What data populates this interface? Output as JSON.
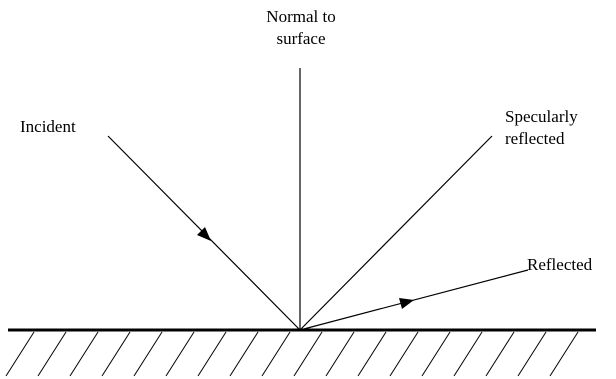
{
  "labels": {
    "normal_line1": "Normal to",
    "normal_line2": "surface",
    "incident": "Incident",
    "specular_line1": "Specularly",
    "specular_line2": "reflected",
    "reflected": "Reflected"
  },
  "colors": {
    "line": "#000000",
    "background": "#ffffff"
  }
}
